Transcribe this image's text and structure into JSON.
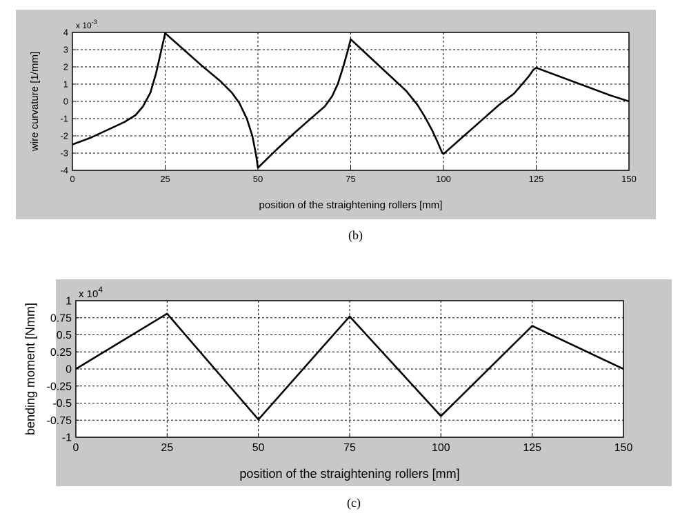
{
  "captions": {
    "b": "(b)",
    "c": "(c)"
  },
  "colors": {
    "panel_bg": "#c8c8c8",
    "plot_bg": "#ffffff",
    "line": "#000000",
    "grid": "#000000"
  },
  "chart_data": [
    {
      "id": "b",
      "type": "line",
      "xlabel": "position of the straightening rollers [mm]",
      "ylabel": "wire curvature [1/mm]",
      "exponent": "x 10",
      "exponent_power": "-3",
      "xlim": [
        0,
        150
      ],
      "ylim": [
        -4,
        4
      ],
      "xticks": [
        0,
        25,
        50,
        75,
        100,
        125,
        150
      ],
      "yticks": [
        4,
        3,
        2,
        1,
        0,
        -1,
        -2,
        -3,
        -4
      ],
      "ytick_labels": [
        "4",
        "3",
        "2",
        "1",
        "0",
        "-1",
        "-2",
        "-3",
        "-4"
      ],
      "grid": true,
      "series": [
        {
          "x": [
            0,
            5,
            10,
            14,
            17,
            19,
            21,
            22.5,
            24,
            25,
            30,
            35,
            40,
            43,
            45,
            47,
            48.5,
            49.5,
            50,
            55,
            60,
            65,
            68,
            70,
            71.5,
            73,
            74.3,
            75,
            80,
            85,
            90,
            93,
            95,
            97,
            98.5,
            99.5,
            100,
            105,
            110,
            115,
            119,
            121,
            123,
            124.3,
            125,
            130,
            135,
            140,
            145,
            150
          ],
          "y": [
            -2.5,
            -2.1,
            -1.6,
            -1.2,
            -0.8,
            -0.3,
            0.5,
            1.6,
            3.0,
            3.95,
            3.0,
            2.05,
            1.15,
            0.5,
            -0.1,
            -1.0,
            -2.0,
            -3.1,
            -3.85,
            -2.8,
            -1.8,
            -0.85,
            -0.3,
            0.3,
            1.0,
            2.0,
            3.0,
            3.6,
            2.6,
            1.6,
            0.6,
            -0.2,
            -0.9,
            -1.7,
            -2.4,
            -2.9,
            -3.05,
            -2.1,
            -1.15,
            -0.2,
            0.45,
            0.95,
            1.45,
            1.85,
            1.95,
            1.55,
            1.15,
            0.75,
            0.35,
            0.0
          ]
        }
      ]
    },
    {
      "id": "c",
      "type": "line",
      "xlabel": "position of the straightening rollers [mm]",
      "ylabel": "bending moment [Nmm]",
      "exponent": "x 10",
      "exponent_power": "4",
      "xlim": [
        0,
        150
      ],
      "ylim": [
        -1,
        1
      ],
      "xticks": [
        0,
        25,
        50,
        75,
        100,
        125,
        150
      ],
      "yticks": [
        1,
        0.75,
        0.5,
        0.25,
        0,
        -0.25,
        -0.5,
        -0.75,
        -1
      ],
      "ytick_labels": [
        "1",
        "0.75",
        "0.5",
        "0.25",
        "0",
        "-0.25",
        "-0.5",
        "-0.75",
        "-1"
      ],
      "grid": true,
      "series": [
        {
          "x": [
            0,
            25,
            50,
            75,
            100,
            125,
            150
          ],
          "y": [
            0,
            0.81,
            -0.74,
            0.77,
            -0.69,
            0.63,
            0
          ]
        }
      ]
    }
  ]
}
